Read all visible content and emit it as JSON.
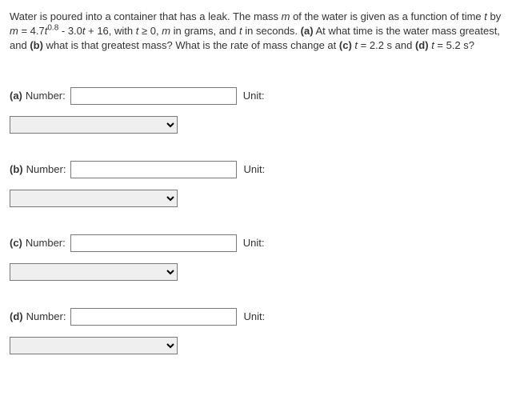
{
  "question": {
    "pre": "Water is poured into a container that has a leak. The mass ",
    "m1": "m",
    "mid1": " of the water is given as a function of time ",
    "t1": "t",
    "mid2": " by ",
    "m2": "m",
    "eq1": " = 4.7",
    "t2": "t",
    "exp": "0.8",
    "eq2": " - 3.0",
    "t3": "t",
    "eq3": " + 16, with ",
    "t4": "t",
    "eq4": " ≥ 0, ",
    "m3": "m",
    "eq5": " in grams, and ",
    "t5": "t",
    "eq6": " in seconds. ",
    "pa": "(a)",
    "qa": " At what time is the water mass greatest, and ",
    "pb": "(b)",
    "qb": " what is that greatest mass? What is the rate of mass change at ",
    "pc": "(c)",
    "qc1": " ",
    "t6": "t",
    "qc2": " = 2.2 s and ",
    "pd": "(d)",
    "qd1": " ",
    "t7": "t",
    "qd2": " = 5.2 s?"
  },
  "labels": {
    "number": "Number:",
    "unit": "Unit:"
  },
  "parts": {
    "a": "(a)",
    "b": "(b)",
    "c": "(c)",
    "d": "(d)"
  },
  "inputs": {
    "a_num": "",
    "b_num": "",
    "c_num": "",
    "d_num": "",
    "a_unit": "",
    "b_unit": "",
    "c_unit": "",
    "d_unit": ""
  },
  "colors": {
    "text": "#333333",
    "background": "#ffffff",
    "input_border": "#7a7a7a"
  }
}
